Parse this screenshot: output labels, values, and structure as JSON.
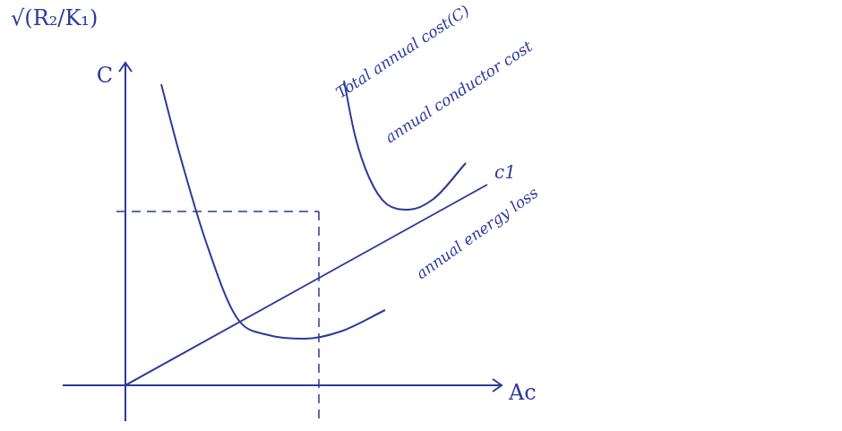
{
  "chart_data": {
    "type": "line",
    "x_label": "Ac",
    "y_label": "C",
    "annotations": [
      "√(R₂/K₁)",
      "c1"
    ],
    "xlim": [
      0,
      10.5
    ],
    "ylim": [
      0,
      9
    ],
    "tick_labels": false,
    "grid": false,
    "color": "#2b3a9c",
    "reference": {
      "x": 5.4,
      "y": 4.85
    },
    "series": [
      {
        "name": "Total annual cost(C)",
        "line_style": "solid",
        "x": [
          6.1,
          6.4,
          6.8,
          7.3,
          7.9,
          8.6,
          9.5
        ],
        "values": [
          8.5,
          7.0,
          5.8,
          5.05,
          4.9,
          5.2,
          6.2
        ]
      },
      {
        "name": "annual conductor cost",
        "line_style": "solid",
        "x": [
          0,
          10.1
        ],
        "values": [
          0,
          5.6
        ]
      },
      {
        "name": "annual energy loss",
        "line_style": "solid",
        "x": [
          1,
          1.5,
          2.25,
          3.1,
          4,
          5,
          6,
          7.25
        ],
        "values": [
          8.4,
          6.5,
          4.0,
          1.9,
          1.4,
          1.3,
          1.5,
          2.1
        ]
      }
    ]
  }
}
